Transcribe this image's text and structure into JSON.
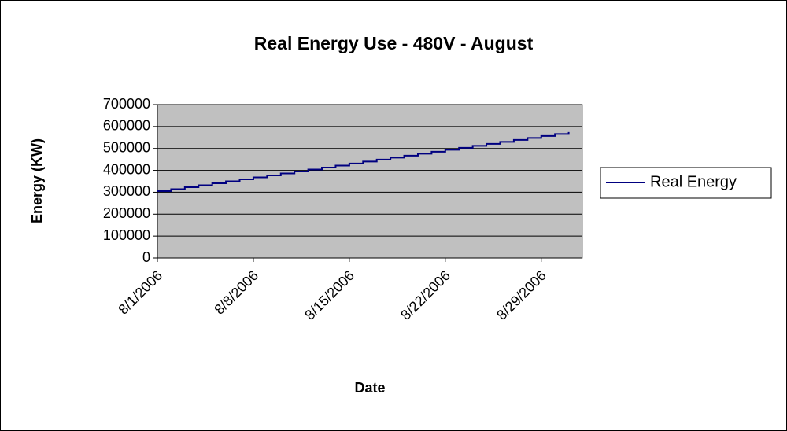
{
  "chart_data": {
    "type": "line",
    "title": "Real Energy Use - 480V - August",
    "x_label": "Date",
    "y_label": "Energy (KW)",
    "x": [
      "8/1/2006",
      "8/2/2006",
      "8/3/2006",
      "8/4/2006",
      "8/5/2006",
      "8/6/2006",
      "8/7/2006",
      "8/8/2006",
      "8/9/2006",
      "8/10/2006",
      "8/11/2006",
      "8/12/2006",
      "8/13/2006",
      "8/14/2006",
      "8/15/2006",
      "8/16/2006",
      "8/17/2006",
      "8/18/2006",
      "8/19/2006",
      "8/20/2006",
      "8/21/2006",
      "8/22/2006",
      "8/23/2006",
      "8/24/2006",
      "8/25/2006",
      "8/26/2006",
      "8/27/2006",
      "8/28/2006",
      "8/29/2006",
      "8/30/2006",
      "8/31/2006"
    ],
    "series": [
      {
        "name": "Real Energy",
        "color": "#000080",
        "values": [
          305000,
          314000,
          323000,
          332000,
          341000,
          350000,
          359000,
          368000,
          377000,
          386000,
          395000,
          404000,
          413000,
          422000,
          431000,
          440000,
          449000,
          458000,
          467000,
          476000,
          485000,
          494000,
          503000,
          512000,
          521000,
          530000,
          539000,
          548000,
          557000,
          566000,
          575000
        ]
      }
    ],
    "step": true,
    "xlim": [
      "8/1/2006",
      "9/1/2006"
    ],
    "xticks": [
      "8/1/2006",
      "8/8/2006",
      "8/15/2006",
      "8/22/2006",
      "8/29/2006"
    ],
    "ylim": [
      0,
      700000
    ],
    "yticks": [
      0,
      100000,
      200000,
      300000,
      400000,
      500000,
      600000,
      700000
    ],
    "grid": true,
    "plot_background": "#c0c0c0",
    "legend": "right"
  }
}
